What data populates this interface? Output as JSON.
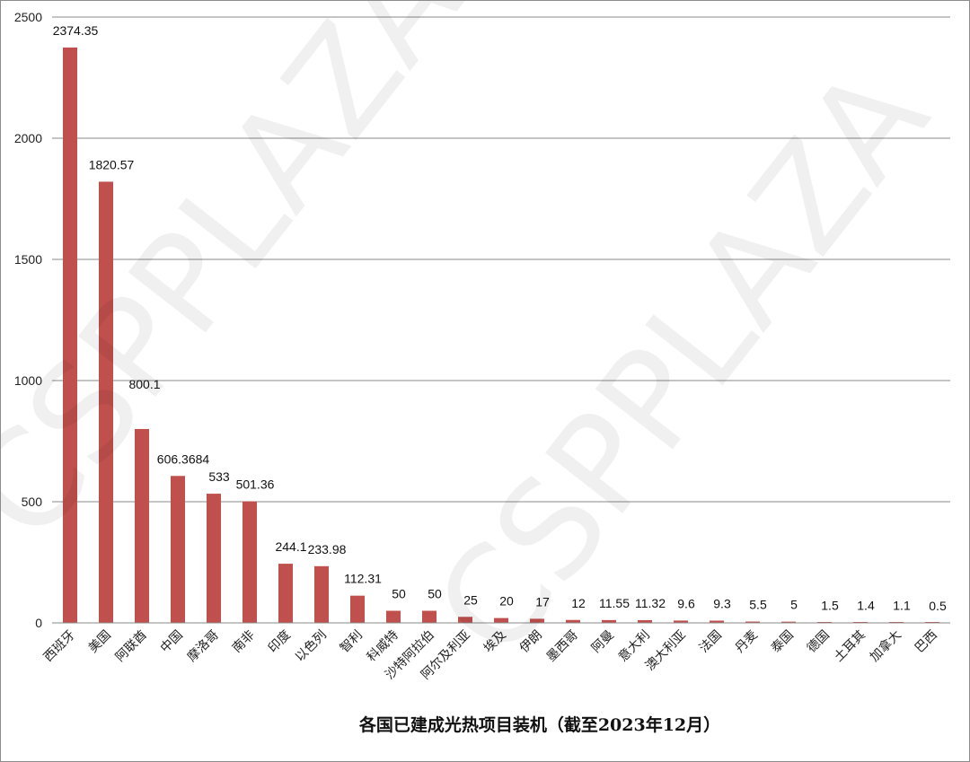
{
  "chart_data": {
    "type": "bar",
    "categories": [
      "西班牙",
      "美国",
      "阿联酋",
      "中国",
      "摩洛哥",
      "南非",
      "印度",
      "以色列",
      "智利",
      "科威特",
      "沙特阿拉伯",
      "阿尔及利亚",
      "埃及",
      "伊朗",
      "墨西哥",
      "阿曼",
      "意大利",
      "澳大利亚",
      "法国",
      "丹麦",
      "泰国",
      "德国",
      "土耳其",
      "加拿大",
      "巴西"
    ],
    "values": [
      2374.35,
      1820.57,
      800.1,
      606.3684,
      533,
      501.36,
      244.1,
      233.98,
      112.31,
      50,
      50,
      25,
      20,
      17,
      12,
      11.55,
      11.32,
      9.6,
      9.3,
      5.5,
      5,
      1.5,
      1.4,
      1.1,
      0.5
    ],
    "value_labels": [
      "2374.35",
      "1820.57",
      "800.1",
      "606.3684",
      "533",
      "501.36",
      "244.1",
      "233.98",
      "112.31",
      "50",
      "50",
      "25",
      "20",
      "17",
      "12",
      "11.55",
      "11.32",
      "9.6",
      "9.3",
      "5.5",
      "5",
      "1.5",
      "1.4",
      "1.1",
      "0.5"
    ],
    "title": "",
    "xlabel": "各国已建成光热项目装机（截至2023年12月）",
    "ylabel": "",
    "ylim": [
      0,
      2500
    ],
    "yticks": [
      0,
      500,
      1000,
      1500,
      2000,
      2500
    ],
    "bar_color": "#c0504d",
    "grid": true,
    "legend": "none",
    "watermark": "CSPPLAZA"
  }
}
